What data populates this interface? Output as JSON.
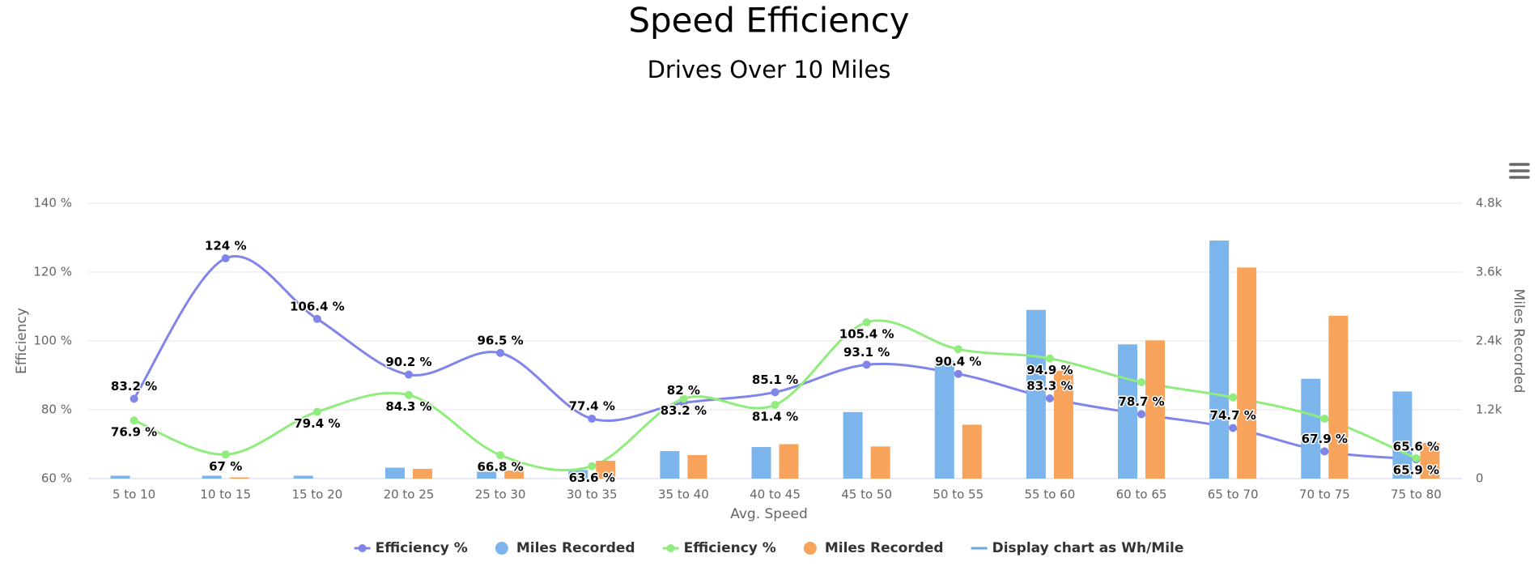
{
  "chart_data": {
    "type": "combo",
    "title": "Speed Efficiency",
    "subtitle": "Drives Over 10 Miles",
    "x_label": "Avg. Speed",
    "y_label": "Efficiency",
    "y2_label": "Miles Recorded",
    "categories": [
      "5 to 10",
      "10 to 15",
      "15 to 20",
      "20 to 25",
      "25 to 30",
      "30 to 35",
      "35 to 40",
      "40 to 45",
      "45 to 50",
      "50 to 55",
      "55 to 60",
      "60 to 65",
      "65 to 70",
      "70 to 75",
      "75 to 80"
    ],
    "ylim": [
      60,
      140
    ],
    "yticks": [
      {
        "value": 60,
        "label": "60 %"
      },
      {
        "value": 80,
        "label": "80 %"
      },
      {
        "value": 100,
        "label": "100 %"
      },
      {
        "value": 120,
        "label": "120 %"
      },
      {
        "value": 140,
        "label": "140 %"
      }
    ],
    "y2lim": [
      0,
      4800
    ],
    "y2ticks": [
      0,
      {
        "value": 1200,
        "label": "1.2k"
      },
      {
        "value": 2400,
        "label": "2.4k"
      },
      {
        "value": 3600,
        "label": "3.6k"
      },
      {
        "value": 4800,
        "label": "4.8k"
      }
    ],
    "grid": true,
    "legend": "bottom",
    "series": [
      {
        "name": "Efficiency %",
        "type": "spline",
        "color": "#8085e9",
        "label_side": "above",
        "values": [
          83.2,
          124,
          106.4,
          90.2,
          96.5,
          77.4,
          82,
          85.1,
          93.1,
          90.4,
          83.3,
          78.7,
          74.7,
          67.9,
          65.6
        ],
        "value_labels": [
          "83.2 %",
          "124 %",
          "106.4 %",
          "90.2 %",
          "96.5 %",
          "77.4 %",
          "82 %",
          "85.1 %",
          "93.1 %",
          "90.4 %",
          "83.3 %",
          "78.7 %",
          "74.7 %",
          "67.9 %",
          "65.6 %"
        ]
      },
      {
        "name": "Miles Recorded",
        "type": "column",
        "axis": "y2",
        "color": "#7cb5ec",
        "offset": -1,
        "values": [
          50,
          50,
          50,
          190,
          120,
          150,
          480,
          550,
          1160,
          2050,
          2940,
          2340,
          4150,
          1740,
          1520
        ]
      },
      {
        "name": "Efficiency %",
        "type": "spline",
        "color": "#90ed7d",
        "label_side": "below",
        "values": [
          76.9,
          67,
          79.4,
          84.3,
          66.8,
          63.6,
          83.2,
          81.4,
          105.4,
          97.6,
          94.9,
          88,
          83.6,
          77.4,
          65.9
        ],
        "value_labels": [
          "76.9 %",
          "67 %",
          "79.4 %",
          "84.3 %",
          "66.8 %",
          "63.6 %",
          "83.2 %",
          "81.4 %",
          "105.4 %",
          null,
          "94.9 %",
          null,
          null,
          null,
          "65.9 %"
        ]
      },
      {
        "name": "Miles Recorded",
        "type": "column",
        "axis": "y2",
        "color": "#f7a35c",
        "offset": 1,
        "values": [
          0,
          20,
          0,
          170,
          140,
          310,
          410,
          600,
          560,
          940,
          1880,
          2410,
          3680,
          2840,
          620
        ]
      }
    ],
    "toggle": {
      "name": "Display chart as Wh/Mile",
      "color": "#6fa8dc"
    }
  }
}
